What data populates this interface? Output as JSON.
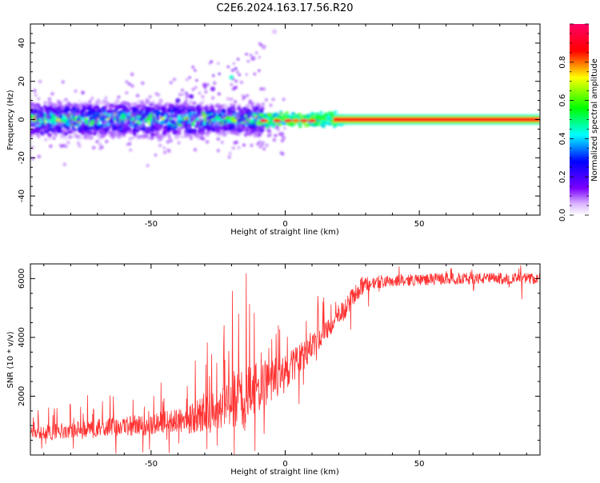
{
  "title": "C2E6.2024.163.17.56.R20",
  "chart_data": [
    {
      "type": "heatmap",
      "xlabel": "Height of straight line (km)",
      "ylabel": "Frequency (Hz)",
      "xlim": [
        -95,
        95
      ],
      "ylim": [
        -50,
        50
      ],
      "xticks": [
        -50,
        0,
        50
      ],
      "yticks": [
        -40,
        -20,
        0,
        20,
        40
      ],
      "grid": false,
      "description_bands": [
        {
          "x_range": [
            -95,
            -10
          ],
          "freq_center": 0,
          "freq_spread": 8,
          "amplitude": 0.3
        },
        {
          "x_range": [
            -10,
            20
          ],
          "freq_center": 0,
          "freq_spread": 2,
          "amplitude": 0.7
        },
        {
          "x_range": [
            20,
            95
          ],
          "freq_center": 0,
          "freq_spread": 1,
          "amplitude": 0.95
        }
      ],
      "outliers": [
        {
          "x": -20,
          "y": 22,
          "amplitude": 0.45
        },
        {
          "x": -27,
          "y": 16,
          "amplitude": 0.15
        },
        {
          "x": -30,
          "y": 18,
          "amplitude": 0.12
        },
        {
          "x": -12,
          "y": 32,
          "amplitude": 0.1
        },
        {
          "x": -8,
          "y": 38,
          "amplitude": 0.08
        },
        {
          "x": -4,
          "y": 46,
          "amplitude": 0.06
        },
        {
          "x": -40,
          "y": 10,
          "amplitude": 0.2
        },
        {
          "x": -35,
          "y": 12,
          "amplitude": 0.18
        }
      ],
      "colorbar": {
        "label": "Normalized spectral amplitude",
        "range": [
          0.0,
          1.0
        ],
        "ticks": [
          0.0,
          0.2,
          0.4,
          0.6,
          0.8
        ],
        "colors": [
          "#ffffff",
          "#7b00ff",
          "#0000ff",
          "#00ffff",
          "#00ff00",
          "#ffff00",
          "#ff0000",
          "#ff007f"
        ]
      }
    },
    {
      "type": "line",
      "xlabel": "Height of straight line (km)",
      "ylabel": "SNR (10 * v/v)",
      "xlim": [
        -95,
        95
      ],
      "ylim": [
        0,
        6500
      ],
      "xticks": [
        -50,
        0,
        50
      ],
      "yticks": [
        2000,
        4000,
        6000
      ],
      "color": "#ff3333",
      "trend": [
        {
          "x": -95,
          "y": 700
        },
        {
          "x": -70,
          "y": 900
        },
        {
          "x": -50,
          "y": 1000
        },
        {
          "x": -35,
          "y": 1200
        },
        {
          "x": -20,
          "y": 1700
        },
        {
          "x": -10,
          "y": 2200
        },
        {
          "x": 0,
          "y": 2700
        },
        {
          "x": 10,
          "y": 3600
        },
        {
          "x": 20,
          "y": 4700
        },
        {
          "x": 28,
          "y": 5700
        },
        {
          "x": 35,
          "y": 5900
        },
        {
          "x": 60,
          "y": 6000
        },
        {
          "x": 95,
          "y": 6000
        }
      ],
      "noise_amplitude": [
        {
          "x": -95,
          "a": 500
        },
        {
          "x": -40,
          "a": 900
        },
        {
          "x": -15,
          "a": 2200
        },
        {
          "x": 0,
          "a": 1400
        },
        {
          "x": 20,
          "a": 500
        },
        {
          "x": 40,
          "a": 250
        },
        {
          "x": 95,
          "a": 250
        }
      ]
    }
  ]
}
